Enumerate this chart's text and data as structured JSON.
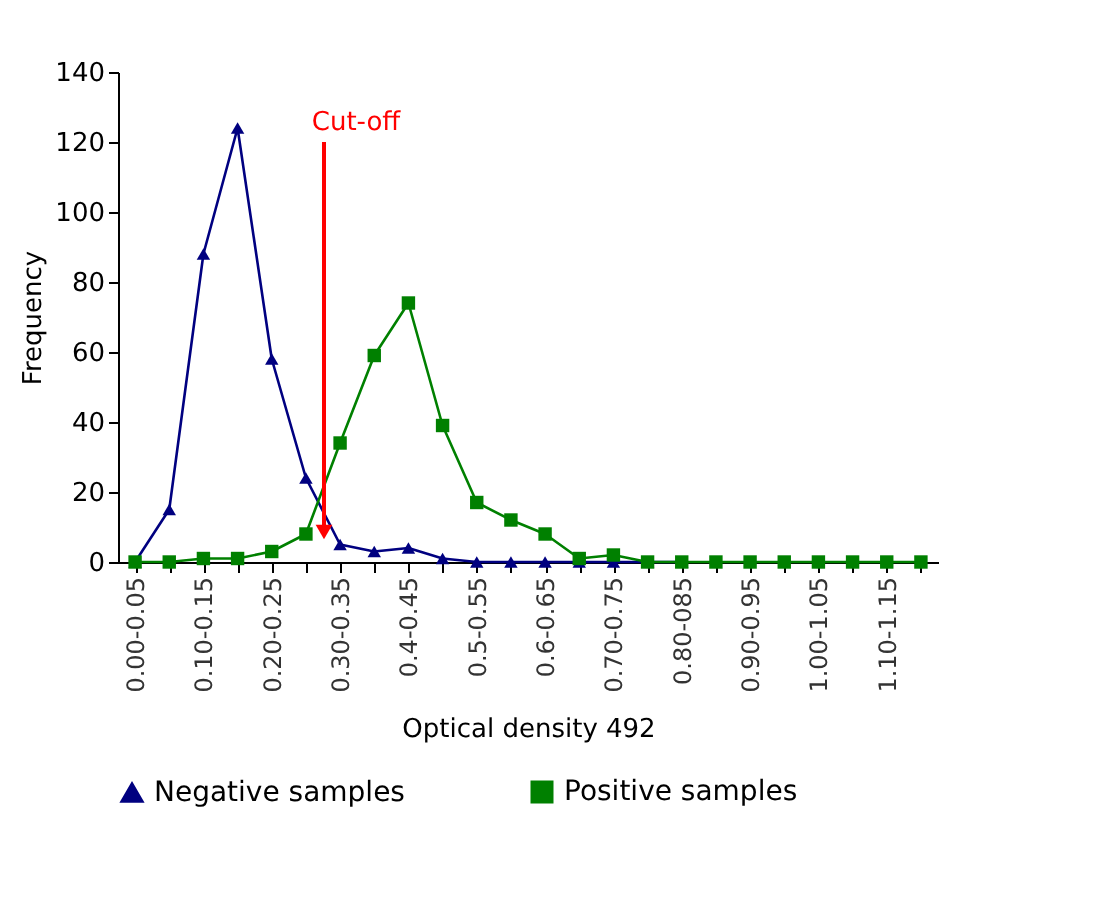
{
  "chart_data": {
    "type": "line",
    "xlabel": "Optical density 492",
    "ylabel": "Frequency",
    "categories": [
      "0.00-0.05",
      null,
      "0.10-0.15",
      null,
      "0.20-0.25",
      null,
      "0.30-0.35",
      null,
      "0.4-0.45",
      null,
      "0.5-0.55",
      null,
      "0.6-0.65",
      null,
      "0.70-0.75",
      null,
      "0.80-085",
      null,
      "0.90-0.95",
      null,
      "1.00-1.05",
      null,
      "1.10-1.15",
      null
    ],
    "series": [
      {
        "name": "Negative samples",
        "color": "#000080",
        "marker": "triangle",
        "values": [
          0,
          15,
          88,
          124,
          58,
          24,
          5,
          3,
          4,
          1,
          0,
          0,
          0,
          0,
          0,
          0,
          0,
          null,
          null,
          null,
          null,
          null,
          null,
          null
        ]
      },
      {
        "name": "Positive samples",
        "color": "#008000",
        "marker": "square",
        "values": [
          0,
          0,
          1,
          1,
          3,
          8,
          34,
          59,
          74,
          39,
          17,
          12,
          8,
          1,
          2,
          0,
          0,
          0,
          0,
          0,
          0,
          0,
          0,
          0
        ]
      }
    ],
    "ylim": [
      0,
      140
    ],
    "yticks": [
      0,
      20,
      40,
      60,
      80,
      100,
      120,
      140
    ],
    "annotations": [
      "Cut-off"
    ],
    "grid": false,
    "legend": "bottom",
    "line_style": "solid"
  }
}
